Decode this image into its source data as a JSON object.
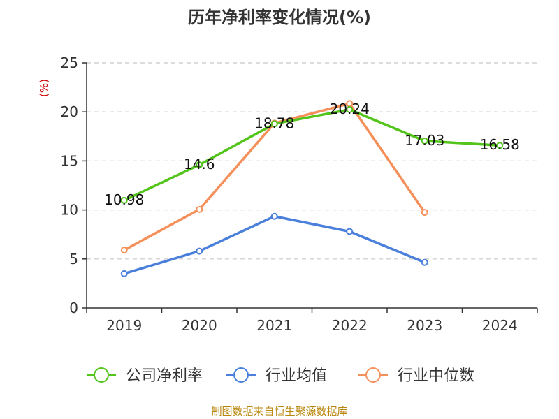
{
  "chart_data": {
    "type": "line",
    "title": "历年净利率变化情况(%)",
    "ylabel": "(%)",
    "xlabel": "",
    "categories": [
      "2019",
      "2020",
      "2021",
      "2022",
      "2023",
      "2024"
    ],
    "ylim": [
      0,
      25
    ],
    "yticks": [
      0,
      5,
      10,
      15,
      20,
      25
    ],
    "grid": true,
    "legend_position": "bottom",
    "series": [
      {
        "name": "公司净利率",
        "color": "#52c41a",
        "values": [
          10.98,
          14.6,
          18.78,
          20.24,
          17.03,
          16.58
        ],
        "labels": [
          "10.98",
          "14.6",
          "18.78",
          "20.24",
          "17.03",
          "16.58"
        ]
      },
      {
        "name": "行业均值",
        "color": "#4a7fdb",
        "values": [
          3.5,
          5.8,
          9.35,
          7.8,
          4.65,
          null
        ]
      },
      {
        "name": "行业中位数",
        "color": "#f5905a",
        "values": [
          5.9,
          10.05,
          18.85,
          20.85,
          9.75,
          null
        ]
      }
    ]
  },
  "source": "制图数据来自恒生聚源数据库"
}
